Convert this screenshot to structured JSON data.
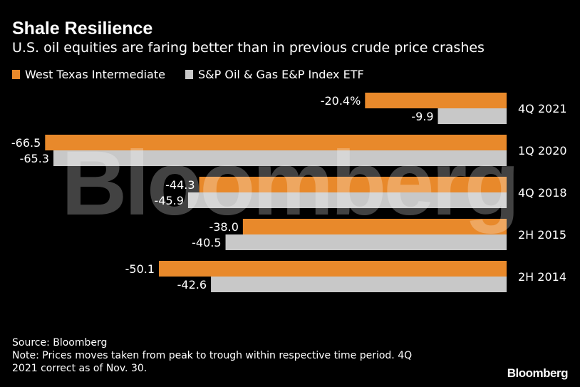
{
  "header": {
    "title": "Shale Resilience",
    "subtitle": "U.S. oil equities are faring better than in previous crude price crashes"
  },
  "colors": {
    "background": "#000000",
    "wti": "#e8892b",
    "etf": "#c8c8c8",
    "text": "#ffffff"
  },
  "chart_data": {
    "type": "bar",
    "orientation": "horizontal",
    "categories": [
      "4Q 2021",
      "1Q 2020",
      "4Q 2018",
      "2H 2015",
      "2H 2014"
    ],
    "series": [
      {
        "name": "West Texas Intermediate",
        "color": "#e8892b",
        "values": [
          -20.4,
          -66.5,
          -44.3,
          -38.0,
          -50.1
        ],
        "labels": [
          "-20.4%",
          "-66.5",
          "-44.3",
          "-38.0",
          "-50.1"
        ]
      },
      {
        "name": "S&P Oil & Gas E&P Index ETF",
        "color": "#c8c8c8",
        "values": [
          -9.9,
          -65.3,
          -45.9,
          -40.5,
          -42.6
        ],
        "labels": [
          "-9.9",
          "-65.3",
          "-45.9",
          "-40.5",
          "-42.6"
        ]
      }
    ],
    "xlim": [
      -70,
      0
    ],
    "legend_position": "top-left",
    "grid": false
  },
  "footer": {
    "source": "Source: Bloomberg",
    "note_line1": "Note: Prices moves taken from peak to trough within respective time period. 4Q",
    "note_line2": "2021 correct as of Nov. 30.",
    "brand": "Bloomberg"
  },
  "watermark": "Bloomberg"
}
